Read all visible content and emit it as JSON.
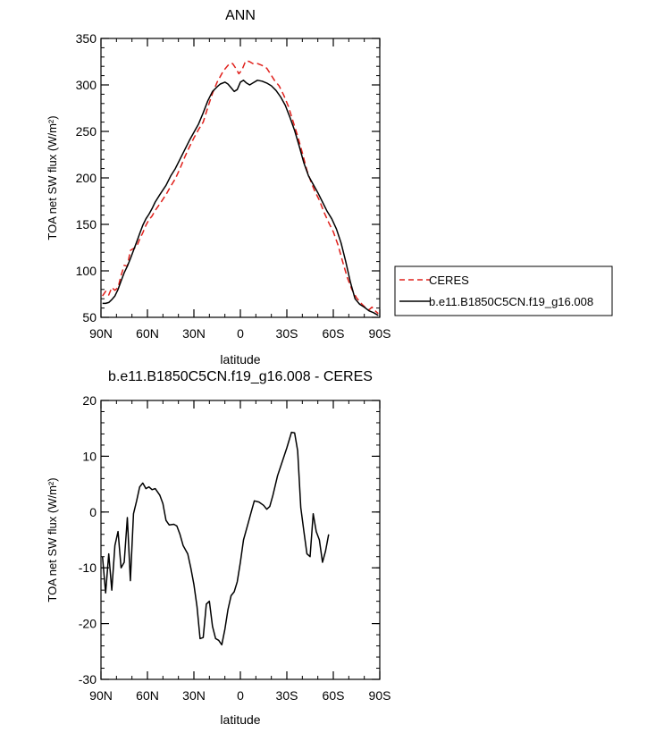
{
  "chart_data": [
    {
      "type": "line",
      "title": "ANN",
      "xlabel": "latitude",
      "ylabel": "TOA net SW flux (W/m²)",
      "xlim": [
        90,
        -90
      ],
      "ylim": [
        50,
        350
      ],
      "xticks": [
        90,
        60,
        30,
        0,
        -30,
        -60,
        -90
      ],
      "xtick_labels": [
        "90N",
        "60N",
        "30N",
        "0",
        "30S",
        "60S",
        "90S"
      ],
      "yticks": [
        50,
        100,
        150,
        200,
        250,
        300,
        350
      ],
      "ytick_labels": [
        "50",
        "100",
        "150",
        "200",
        "250",
        "300",
        "350"
      ],
      "legend_position": "right",
      "series": [
        {
          "name": "CERES",
          "color": "#e0201b",
          "dash": "dashed",
          "points": [
            [
              89,
              73
            ],
            [
              87,
              78
            ],
            [
              85,
              74
            ],
            [
              83,
              82
            ],
            [
              81,
              79
            ],
            [
              79,
              82
            ],
            [
              77,
              95
            ],
            [
              75,
              106
            ],
            [
              73,
              105
            ],
            [
              71,
              122
            ],
            [
              69,
              124
            ],
            [
              67,
              126
            ],
            [
              65,
              134
            ],
            [
              63,
              141
            ],
            [
              61,
              149
            ],
            [
              59,
              155
            ],
            [
              57,
              159
            ],
            [
              55,
              165
            ],
            [
              52,
              172
            ],
            [
              48,
              182
            ],
            [
              45,
              191
            ],
            [
              42,
              199
            ],
            [
              39,
              210
            ],
            [
              36,
              222
            ],
            [
              33,
              233
            ],
            [
              30,
              243
            ],
            [
              27,
              252
            ],
            [
              24,
              260
            ],
            [
              21,
              276
            ],
            [
              18,
              291
            ],
            [
              15,
              303
            ],
            [
              13,
              309
            ],
            [
              11,
              315
            ],
            [
              9,
              319
            ],
            [
              7,
              323
            ],
            [
              5,
              323
            ],
            [
              3,
              318
            ],
            [
              1,
              312
            ],
            [
              -1,
              316
            ],
            [
              -3,
              324
            ],
            [
              -4,
              326
            ],
            [
              -6,
              325
            ],
            [
              -8,
              323
            ],
            [
              -11,
              323
            ],
            [
              -14,
              321
            ],
            [
              -17,
              318
            ],
            [
              -19,
              313
            ],
            [
              -22,
              305
            ],
            [
              -25,
              299
            ],
            [
              -28,
              289
            ],
            [
              -31,
              277
            ],
            [
              -34,
              261
            ],
            [
              -37,
              245
            ],
            [
              -40,
              227
            ],
            [
              -43,
              208
            ],
            [
              -46,
              194
            ],
            [
              -48,
              186
            ],
            [
              -51,
              176
            ],
            [
              -54,
              163
            ],
            [
              -57,
              152
            ],
            [
              -60,
              142
            ],
            [
              -63,
              128
            ],
            [
              -66,
              110
            ],
            [
              -69,
              93
            ],
            [
              -72,
              80
            ],
            [
              -75,
              71
            ],
            [
              -78,
              65
            ],
            [
              -81,
              60
            ],
            [
              -83,
              58
            ],
            [
              -85,
              61
            ],
            [
              -87,
              57
            ],
            [
              -89,
              54
            ]
          ]
        },
        {
          "name": "b.e11.B1850C5CN.f19_g16.008",
          "color": "#000000",
          "dash": "solid",
          "points": [
            [
              89,
              65
            ],
            [
              87,
              65
            ],
            [
              85,
              66
            ],
            [
              83,
              69
            ],
            [
              81,
              73
            ],
            [
              79,
              80
            ],
            [
              77,
              89
            ],
            [
              75,
              98
            ],
            [
              73,
              105
            ],
            [
              71,
              113
            ],
            [
              69,
              122
            ],
            [
              67,
              131
            ],
            [
              65,
              140
            ],
            [
              63,
              149
            ],
            [
              61,
              156
            ],
            [
              59,
              161
            ],
            [
              57,
              167
            ],
            [
              55,
              174
            ],
            [
              52,
              182
            ],
            [
              48,
              192
            ],
            [
              45,
              202
            ],
            [
              42,
              210
            ],
            [
              39,
              220
            ],
            [
              36,
              230
            ],
            [
              33,
              240
            ],
            [
              30,
              249
            ],
            [
              27,
              258
            ],
            [
              24,
              270
            ],
            [
              21,
              283
            ],
            [
              18,
              293
            ],
            [
              15,
              298
            ],
            [
              13,
              301
            ],
            [
              10,
              303
            ],
            [
              8,
              301
            ],
            [
              6,
              297
            ],
            [
              4,
              293
            ],
            [
              2,
              295
            ],
            [
              0,
              303
            ],
            [
              -2,
              305
            ],
            [
              -4,
              302
            ],
            [
              -6,
              300
            ],
            [
              -8,
              302
            ],
            [
              -11,
              305
            ],
            [
              -14,
              304
            ],
            [
              -17,
              302
            ],
            [
              -20,
              299
            ],
            [
              -23,
              294
            ],
            [
              -26,
              287
            ],
            [
              -29,
              278
            ],
            [
              -32,
              265
            ],
            [
              -35,
              251
            ],
            [
              -38,
              234
            ],
            [
              -41,
              216
            ],
            [
              -44,
              202
            ],
            [
              -47,
              193
            ],
            [
              -50,
              184
            ],
            [
              -53,
              174
            ],
            [
              -56,
              164
            ],
            [
              -59,
              156
            ],
            [
              -62,
              145
            ],
            [
              -65,
              130
            ],
            [
              -68,
              110
            ],
            [
              -71,
              88
            ],
            [
              -74,
              70
            ],
            [
              -77,
              64
            ],
            [
              -80,
              61
            ],
            [
              -83,
              57
            ],
            [
              -86,
              55
            ],
            [
              -89,
              52
            ]
          ]
        }
      ]
    },
    {
      "type": "line",
      "title": "b.e11.B1850C5CN.f19_g16.008 - CERES",
      "xlabel": "latitude",
      "ylabel": "TOA net SW flux (W/m²)",
      "xlim": [
        90,
        -90
      ],
      "ylim": [
        -30,
        20
      ],
      "xticks": [
        90,
        60,
        30,
        0,
        -30,
        -60,
        -90
      ],
      "xtick_labels": [
        "90N",
        "60N",
        "30N",
        "0",
        "30S",
        "60S",
        "90S"
      ],
      "yticks": [
        -30,
        -20,
        -10,
        0,
        10,
        20
      ],
      "ytick_labels": [
        "-30",
        "-20",
        "-10",
        "0",
        "10",
        "20"
      ],
      "series": [
        {
          "color": "#000000",
          "dash": "solid",
          "points": [
            [
              89,
              -8
            ],
            [
              87,
              -14.5
            ],
            [
              85,
              -7.5
            ],
            [
              83,
              -14
            ],
            [
              81,
              -6
            ],
            [
              79,
              -3.5
            ],
            [
              77,
              -10
            ],
            [
              75,
              -9
            ],
            [
              73,
              -1
            ],
            [
              71,
              -12.3
            ],
            [
              69,
              -0.3
            ],
            [
              67,
              2
            ],
            [
              65,
              4.5
            ],
            [
              63,
              5.2
            ],
            [
              61,
              4.2
            ],
            [
              59,
              4.5
            ],
            [
              57,
              4
            ],
            [
              55,
              4.2
            ],
            [
              52,
              3
            ],
            [
              50,
              1.5
            ],
            [
              48,
              -1.5
            ],
            [
              46,
              -2.3
            ],
            [
              43,
              -2.2
            ],
            [
              41,
              -2.5
            ],
            [
              39,
              -4
            ],
            [
              37,
              -6
            ],
            [
              34,
              -7.5
            ],
            [
              32,
              -10
            ],
            [
              30,
              -13
            ],
            [
              28,
              -17
            ],
            [
              26,
              -22.7
            ],
            [
              24,
              -22.5
            ],
            [
              22,
              -16.5
            ],
            [
              20,
              -16
            ],
            [
              18,
              -20.5
            ],
            [
              16,
              -22.7
            ],
            [
              14,
              -23
            ],
            [
              12,
              -23.8
            ],
            [
              10,
              -21
            ],
            [
              8,
              -17.5
            ],
            [
              6,
              -15
            ],
            [
              4,
              -14.3
            ],
            [
              2,
              -12.5
            ],
            [
              0,
              -9
            ],
            [
              -2,
              -5
            ],
            [
              -5,
              -2
            ],
            [
              -7,
              0
            ],
            [
              -9,
              2
            ],
            [
              -12,
              1.8
            ],
            [
              -15,
              1.2
            ],
            [
              -17,
              0.5
            ],
            [
              -19,
              1
            ],
            [
              -21,
              3
            ],
            [
              -24,
              6.5
            ],
            [
              -27,
              9
            ],
            [
              -30,
              11.5
            ],
            [
              -33,
              14.3
            ],
            [
              -35,
              14.2
            ],
            [
              -37,
              11
            ],
            [
              -39,
              0.8
            ],
            [
              -41,
              -3.5
            ],
            [
              -43,
              -7.5
            ],
            [
              -45,
              -8
            ],
            [
              -47,
              -0.3
            ],
            [
              -49,
              -3.5
            ],
            [
              -51,
              -5
            ],
            [
              -53,
              -9
            ],
            [
              -55,
              -7
            ],
            [
              -57,
              -4
            ]
          ]
        }
      ]
    }
  ]
}
